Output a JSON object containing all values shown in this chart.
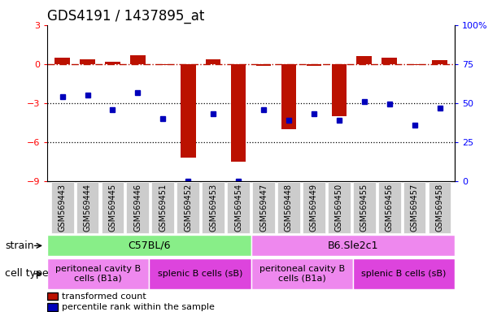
{
  "title": "GDS4191 / 1437895_at",
  "samples": [
    "GSM569443",
    "GSM569444",
    "GSM569445",
    "GSM569446",
    "GSM569451",
    "GSM569452",
    "GSM569453",
    "GSM569454",
    "GSM569447",
    "GSM569448",
    "GSM569449",
    "GSM569450",
    "GSM569455",
    "GSM569456",
    "GSM569457",
    "GSM569458"
  ],
  "bar_values": [
    0.5,
    0.35,
    0.15,
    0.65,
    -0.05,
    -7.2,
    0.35,
    -7.5,
    -0.15,
    -5.0,
    -0.12,
    -4.0,
    0.6,
    0.5,
    -0.05,
    0.3
  ],
  "dot_values": [
    -2.5,
    -2.4,
    -3.5,
    -2.2,
    -4.2,
    -9.0,
    -3.8,
    -9.0,
    -3.5,
    -4.3,
    -3.8,
    -4.3,
    -2.9,
    -3.1,
    -4.7,
    -3.4
  ],
  "bar_color": "#bb1100",
  "dot_color": "#0000bb",
  "hline_y": 0,
  "hline_color": "#bb1100",
  "dotted_lines": [
    -3,
    -6
  ],
  "ylim": [
    -9,
    3
  ],
  "yticks": [
    3,
    0,
    -3,
    -6,
    -9
  ],
  "y2lim": [
    0,
    100
  ],
  "y2ticks": [
    0,
    25,
    50,
    75,
    100
  ],
  "y2ticklabels": [
    "0",
    "25",
    "50",
    "75",
    "100%"
  ],
  "strain_labels": [
    "C57BL/6",
    "B6.Sle2c1"
  ],
  "strain_colors": [
    "#88ee88",
    "#ee88ee"
  ],
  "celltype_labels": [
    "peritoneal cavity B\ncells (B1a)",
    "splenic B cells (sB)",
    "peritoneal cavity B\ncells (B1a)",
    "splenic B cells (sB)"
  ],
  "celltype_ranges": [
    0,
    4,
    8,
    12,
    16
  ],
  "celltype_colors": [
    "#ee88ee",
    "#dd44dd",
    "#ee88ee",
    "#dd44dd"
  ],
  "legend_red": "transformed count",
  "legend_blue": "percentile rank within the sample",
  "strain_label": "strain",
  "celltype_label": "cell type",
  "title_fontsize": 12,
  "tick_fontsize": 7,
  "bar_width": 0.6
}
